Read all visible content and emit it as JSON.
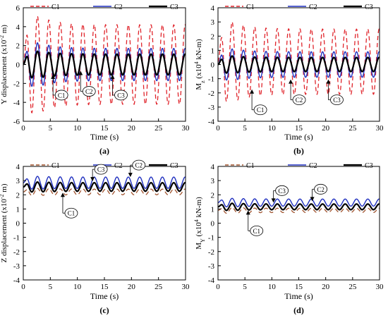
{
  "colors": {
    "C1": "#e0242b",
    "C1_lower": "#a0522d",
    "C2": "#1f2fbf",
    "C3": "#000000"
  },
  "chart_data": [
    {
      "id": "a",
      "type": "line",
      "panel_label": "(a)",
      "xlabel": "Time (s)",
      "ylabel_text": "Y displacement (x10",
      "ylabel_sup": "-2",
      "ylabel_end": " m)",
      "xlim": [
        0,
        30
      ],
      "ylim": [
        -6,
        6
      ],
      "xticks": [
        0,
        5,
        10,
        15,
        20,
        25,
        30
      ],
      "yticks": [
        -6,
        -4,
        -2,
        0,
        2,
        4,
        6
      ],
      "tick_labels_x": [
        "0",
        "5",
        "10",
        "15",
        "20",
        "25",
        "30"
      ],
      "tick_labels_y": [
        "-6",
        "-4",
        "-2",
        "0",
        "2",
        "4",
        "6"
      ],
      "legend": [
        "C1",
        "C2",
        "C3"
      ],
      "series": [
        {
          "name": "C1",
          "style": "dashed",
          "mean": 0,
          "amplitude_peak": 5.1,
          "amplitude_steady": 4.2,
          "period": 2.1
        },
        {
          "name": "C2",
          "style": "solid",
          "mean": 0,
          "amplitude_peak": 2.3,
          "amplitude_steady": 1.7,
          "period": 2.1
        },
        {
          "name": "C3",
          "style": "solid-thick",
          "mean": 0,
          "amplitude_peak": 1.4,
          "amplitude_steady": 1.1,
          "period": 2.1
        }
      ],
      "annotations": [
        {
          "text": "C1",
          "x": 5.5,
          "y": -1.0
        },
        {
          "text": "C2",
          "x": 10.6,
          "y": -0.6
        },
        {
          "text": "C3",
          "x": 16.5,
          "y": -1.0
        }
      ]
    },
    {
      "id": "b",
      "type": "line",
      "panel_label": "(b)",
      "xlabel": "Time (s)",
      "ylabel_text": "M",
      "ylabel_sub": "z",
      "ylabel_unit": " (x10",
      "ylabel_sup": "4",
      "ylabel_end": " kN-m)",
      "xlim": [
        0,
        30
      ],
      "ylim": [
        -4,
        4
      ],
      "xticks": [
        0,
        5,
        10,
        15,
        20,
        25,
        30
      ],
      "yticks": [
        -4,
        -3,
        -2,
        -1,
        0,
        1,
        2,
        3,
        4
      ],
      "tick_labels_x": [
        "0",
        "5",
        "10",
        "15",
        "20",
        "25",
        "30"
      ],
      "tick_labels_y": [
        "-4",
        "-3",
        "-2",
        "-1",
        "0",
        "1",
        "2",
        "3",
        "4"
      ],
      "legend": [
        "C1",
        "C2",
        "C3"
      ],
      "series": [
        {
          "name": "C1",
          "style": "dashed",
          "mean": 0.2,
          "amplitude_peak": 2.8,
          "amplitude_steady": 2.3,
          "period": 2.1
        },
        {
          "name": "C2",
          "style": "solid",
          "mean": 0,
          "amplitude_peak": 1.1,
          "amplitude_steady": 0.9,
          "period": 2.1
        },
        {
          "name": "C3",
          "style": "solid-thick",
          "mean": 0,
          "amplitude_peak": 0.6,
          "amplitude_steady": 0.5,
          "period": 2.1
        }
      ],
      "annotations": [
        {
          "text": "C1",
          "x": 6.3,
          "y": -1.7
        },
        {
          "text": "C2",
          "x": 13.5,
          "y": -1.0
        },
        {
          "text": "C3",
          "x": 20.5,
          "y": -1.0
        }
      ]
    },
    {
      "id": "c",
      "type": "line",
      "panel_label": "(c)",
      "xlabel": "Time (s)",
      "ylabel_text": "Z displacement (x10",
      "ylabel_sup": "-2",
      "ylabel_end": " m)",
      "xlim": [
        0,
        30
      ],
      "ylim": [
        -4,
        4
      ],
      "xticks": [
        0,
        5,
        10,
        15,
        20,
        25,
        30
      ],
      "yticks": [
        -4,
        -3,
        -2,
        -1,
        0,
        1,
        2,
        3,
        4
      ],
      "tick_labels_x": [
        "0",
        "5",
        "10",
        "15",
        "20",
        "25",
        "30"
      ],
      "tick_labels_y": [
        "-4",
        "-3",
        "-2",
        "-1",
        "0",
        "1",
        "2",
        "3",
        "4"
      ],
      "legend": [
        "C1",
        "C2",
        "C3"
      ],
      "series": [
        {
          "name": "C1",
          "style": "dashed",
          "mean": 2.2,
          "amplitude_peak": 0.25,
          "amplitude_steady": 0.2,
          "period": 2.1
        },
        {
          "name": "C2",
          "style": "solid",
          "mean": 2.85,
          "amplitude_peak": 0.45,
          "amplitude_steady": 0.4,
          "period": 2.1
        },
        {
          "name": "C3",
          "style": "solid-thick",
          "mean": 2.55,
          "amplitude_peak": 0.35,
          "amplitude_steady": 0.3,
          "period": 2.1
        }
      ],
      "annotations": [
        {
          "text": "C1",
          "x": 7.3,
          "y": 2.2
        },
        {
          "text": "C3",
          "x": 12.8,
          "y": 2.9
        },
        {
          "text": "C2",
          "x": 19.8,
          "y": 3.2
        }
      ]
    },
    {
      "id": "d",
      "type": "line",
      "panel_label": "(d)",
      "xlabel": "Time (s)",
      "ylabel_text": "M",
      "ylabel_sub": "Y",
      "ylabel_unit": " (x10",
      "ylabel_sup": "4",
      "ylabel_end": " kN-m)",
      "xlim": [
        0,
        30
      ],
      "ylim": [
        -4,
        4
      ],
      "xticks": [
        0,
        5,
        10,
        15,
        20,
        25,
        30
      ],
      "yticks": [
        -4,
        -3,
        -2,
        -1,
        0,
        1,
        2,
        3,
        4
      ],
      "tick_labels_x": [
        "0",
        "5",
        "10",
        "15",
        "20",
        "25",
        "30"
      ],
      "tick_labels_y": [
        "-4",
        "-3",
        "-2",
        "-1",
        "0",
        "1",
        "2",
        "3",
        "4"
      ],
      "legend": [
        "C1",
        "C2",
        "C3"
      ],
      "series": [
        {
          "name": "C1",
          "style": "dashed",
          "mean": 0.9,
          "amplitude_peak": 0.2,
          "amplitude_steady": 0.15,
          "period": 2.1
        },
        {
          "name": "C2",
          "style": "solid",
          "mean": 1.45,
          "amplitude_peak": 0.3,
          "amplitude_steady": 0.25,
          "period": 2.1
        },
        {
          "name": "C3",
          "style": "solid-thick",
          "mean": 1.15,
          "amplitude_peak": 0.25,
          "amplitude_steady": 0.2,
          "period": 2.1
        }
      ],
      "annotations": [
        {
          "text": "C1",
          "x": 5.6,
          "y": 0.95
        },
        {
          "text": "C3",
          "x": 10.3,
          "y": 1.4
        },
        {
          "text": "C2",
          "x": 17.5,
          "y": 1.5
        }
      ]
    }
  ]
}
